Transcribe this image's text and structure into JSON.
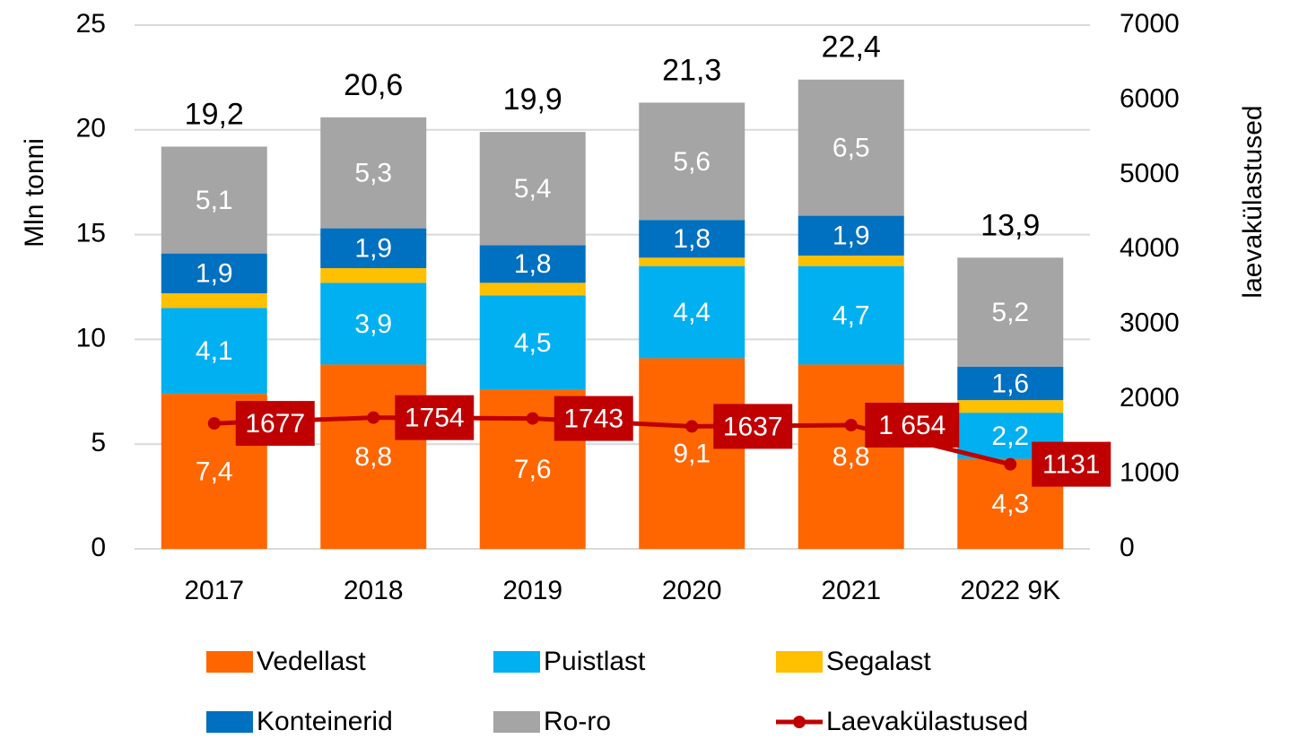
{
  "chart_data": {
    "type": "bar",
    "stacked": true,
    "categories": [
      "2017",
      "2018",
      "2019",
      "2020",
      "2021",
      "2022 9K"
    ],
    "series": [
      {
        "name": "Vedellast",
        "color": "#ff6600",
        "values": [
          7.4,
          8.8,
          7.6,
          9.1,
          8.8,
          4.3
        ],
        "value_labels": [
          "7,4",
          "8,8",
          "7,6",
          "9,1",
          "8,8",
          "4,3"
        ]
      },
      {
        "name": "Puistlast",
        "color": "#00b0f0",
        "values": [
          4.1,
          3.9,
          4.5,
          4.4,
          4.7,
          2.2
        ],
        "value_labels": [
          "4,1",
          "3,9",
          "4,5",
          "4,4",
          "4,7",
          "2,2"
        ]
      },
      {
        "name": "Segalast",
        "color": "#ffc000",
        "values": [
          0.7,
          0.7,
          0.6,
          0.4,
          0.5,
          0.6
        ]
      },
      {
        "name": "Konteinerid",
        "color": "#0070c0",
        "values": [
          1.9,
          1.9,
          1.8,
          1.8,
          1.9,
          1.6
        ],
        "value_labels": [
          "1,9",
          "1,9",
          "1,8",
          "1,8",
          "1,9",
          "1,6"
        ]
      },
      {
        "name": "Ro-ro",
        "color": "#a5a5a5",
        "values": [
          5.1,
          5.3,
          5.4,
          5.6,
          6.5,
          5.2
        ],
        "value_labels": [
          "5,1",
          "5,3",
          "5,4",
          "5,6",
          "6,5",
          "5,2"
        ]
      },
      {
        "name": "Laevakülastused",
        "color": "#c00000",
        "type": "line",
        "axis": "y2",
        "values": [
          1677,
          1754,
          1743,
          1637,
          1654,
          1131
        ],
        "value_labels": [
          "1677",
          "1754",
          "1743",
          "1637",
          "1 654",
          "1131"
        ]
      }
    ],
    "totals": {
      "values": [
        19.2,
        20.6,
        19.9,
        21.3,
        22.4,
        13.9
      ],
      "value_labels": [
        "19,2",
        "20,6",
        "19,9",
        "21,3",
        "22,4",
        "13,9"
      ]
    },
    "ylabel": "Mln tonni",
    "y2label": "laevakülastused",
    "ylim": [
      0,
      25
    ],
    "yticks": [
      0,
      5,
      10,
      15,
      20,
      25
    ],
    "y2lim": [
      0,
      7000
    ],
    "y2ticks": [
      0,
      1000,
      2000,
      3000,
      4000,
      5000,
      6000,
      7000
    ],
    "grid": true,
    "legend": "bottom"
  }
}
